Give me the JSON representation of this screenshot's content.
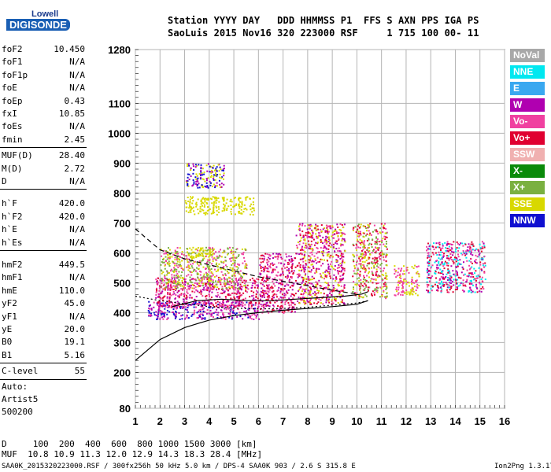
{
  "logo": {
    "top": "Lowell",
    "bottom": "DIGISONDE"
  },
  "header": {
    "labels": "Station YYYY DAY   DDD HHMMSS P1  FFS S AXN PPS IGA PS",
    "values": "SaoLuis 2015 Nov16 320 223000 RSF     1 715 100 00- 11"
  },
  "params": {
    "group1": [
      {
        "k": "foF2",
        "v": "10.450"
      },
      {
        "k": "foF1",
        "v": "N/A"
      },
      {
        "k": "foF1p",
        "v": "N/A"
      },
      {
        "k": "foE",
        "v": "N/A"
      },
      {
        "k": "foEp",
        "v": "0.43"
      },
      {
        "k": "fxI",
        "v": "10.85"
      },
      {
        "k": "foEs",
        "v": "N/A"
      },
      {
        "k": "fmin",
        "v": "2.45"
      }
    ],
    "group2": [
      {
        "k": "MUF(D)",
        "v": "28.40"
      },
      {
        "k": "M(D)",
        "v": "2.72"
      },
      {
        "k": "D",
        "v": "N/A"
      }
    ],
    "group3": [
      {
        "k": "h`F",
        "v": "420.0"
      },
      {
        "k": "h`F2",
        "v": "420.0"
      },
      {
        "k": "h`E",
        "v": "N/A"
      },
      {
        "k": "h`Es",
        "v": "N/A"
      }
    ],
    "group4": [
      {
        "k": "hmF2",
        "v": "449.5"
      },
      {
        "k": "hmF1",
        "v": "N/A"
      },
      {
        "k": "hmE",
        "v": "110.0"
      },
      {
        "k": "yF2",
        "v": "45.0"
      },
      {
        "k": "yF1",
        "v": "N/A"
      },
      {
        "k": "yE",
        "v": "20.0"
      },
      {
        "k": "B0",
        "v": "19.1"
      },
      {
        "k": "B1",
        "v": "5.16"
      }
    ],
    "clevel": {
      "k": "C-level",
      "v": "55"
    },
    "auto": [
      "Auto:",
      "Artist5",
      "500200"
    ]
  },
  "legend": [
    {
      "label": "NoVal",
      "color": "#a8a8a8"
    },
    {
      "label": "NNE",
      "color": "#00e8f0"
    },
    {
      "label": "E",
      "color": "#3aa8f0"
    },
    {
      "label": "W",
      "color": "#b000b0"
    },
    {
      "label": "Vo-",
      "color": "#f040a0"
    },
    {
      "label": "Vo+",
      "color": "#e00030"
    },
    {
      "label": "SSW",
      "color": "#f0b0b0"
    },
    {
      "label": "X-",
      "color": "#0a8a0a"
    },
    {
      "label": "X+",
      "color": "#7ab040"
    },
    {
      "label": "SSE",
      "color": "#d8d800"
    },
    {
      "label": "NNW",
      "color": "#1010d0"
    }
  ],
  "bottom": {
    "d_row": "D     100  200  400  600  800 1000 1500 3000 [km]",
    "muf_row": "MUF  10.8 10.9 11.3 12.0 12.9 14.3 18.3 28.4 [MHz]"
  },
  "footer": {
    "left": "SAA0K_2015320223000.RSF / 300fx256h 50 kHz 5.0 km / DPS-4 SAA0K 903 / 2.6 S 315.8 E",
    "right": "Ion2Png 1.3.17"
  },
  "chart_data": {
    "type": "scatter",
    "xlim": [
      1,
      16
    ],
    "ylim": [
      80,
      1280
    ],
    "x_ticks": [
      1,
      2,
      3,
      4,
      5,
      6,
      7,
      8,
      9,
      10,
      11,
      12,
      13,
      14,
      15,
      16
    ],
    "y_ticks": [
      80,
      200,
      300,
      400,
      500,
      600,
      700,
      800,
      900,
      1000,
      1100,
      1280
    ],
    "grid": true,
    "curves": [
      {
        "style": "solid",
        "x": [
          1.0,
          1.5,
          2.0,
          3.0,
          4.0,
          5.0,
          6.0,
          7.0,
          8.0,
          9.0,
          10.0,
          10.45
        ],
        "y": [
          240,
          275,
          310,
          350,
          375,
          390,
          400,
          408,
          414,
          420,
          428,
          440
        ]
      },
      {
        "style": "dashed",
        "x": [
          1.0,
          2.0,
          3.0,
          4.0,
          5.0,
          6.0,
          7.0,
          8.0,
          9.0,
          10.0
        ],
        "y": [
          680,
          610,
          580,
          560,
          540,
          520,
          505,
          490,
          475,
          462
        ]
      },
      {
        "style": "dotted",
        "x": [
          1.0,
          2.0,
          3.0,
          4.0,
          5.0,
          6.0,
          7.0,
          8.0,
          9.0,
          10.0,
          10.45
        ],
        "y": [
          455,
          440,
          430,
          420,
          415,
          412,
          414,
          418,
          425,
          432,
          440
        ]
      },
      {
        "style": "solid",
        "x": [
          2.5,
          3.5,
          4.5,
          5.5,
          6.5,
          7.5,
          8.5,
          9.5,
          10.2,
          10.45
        ],
        "y": [
          420,
          440,
          445,
          440,
          440,
          445,
          450,
          455,
          462,
          470
        ]
      }
    ],
    "echo_clusters": [
      {
        "x": [
          1.5,
          6.0
        ],
        "y": [
          380,
          440
        ],
        "colors": [
          "#b000b0",
          "#1010d0",
          "#f040a0"
        ]
      },
      {
        "x": [
          1.8,
          6.0
        ],
        "y": [
          420,
          520
        ],
        "colors": [
          "#f040a0",
          "#e00030",
          "#b000b0"
        ]
      },
      {
        "x": [
          2.0,
          5.5
        ],
        "y": [
          480,
          620
        ],
        "colors": [
          "#d8d800",
          "#7ab040",
          "#f040a0"
        ]
      },
      {
        "x": [
          6.0,
          7.5
        ],
        "y": [
          400,
          600
        ],
        "colors": [
          "#e00030",
          "#f040a0",
          "#b000b0"
        ]
      },
      {
        "x": [
          7.5,
          9.5
        ],
        "y": [
          430,
          700
        ],
        "colors": [
          "#f040a0",
          "#e00030",
          "#b000b0",
          "#d8d800"
        ]
      },
      {
        "x": [
          9.8,
          11.2
        ],
        "y": [
          450,
          700
        ],
        "colors": [
          "#e00030",
          "#f040a0",
          "#d8d800",
          "#7ab040"
        ]
      },
      {
        "x": [
          11.5,
          12.5
        ],
        "y": [
          460,
          560
        ],
        "colors": [
          "#f040a0",
          "#d8d800"
        ]
      },
      {
        "x": [
          12.8,
          15.2
        ],
        "y": [
          470,
          640
        ],
        "colors": [
          "#b000b0",
          "#f040a0",
          "#00e8f0",
          "#e00030"
        ]
      },
      {
        "x": [
          3.0,
          4.6
        ],
        "y": [
          820,
          900
        ],
        "colors": [
          "#b000b0",
          "#1010d0",
          "#d8d800"
        ]
      },
      {
        "x": [
          3.0,
          5.8
        ],
        "y": [
          730,
          790
        ],
        "colors": [
          "#d8d800"
        ]
      },
      {
        "x": [
          3.2,
          4.2
        ],
        "y": [
          580,
          620
        ],
        "colors": [
          "#d8d800"
        ]
      }
    ]
  }
}
